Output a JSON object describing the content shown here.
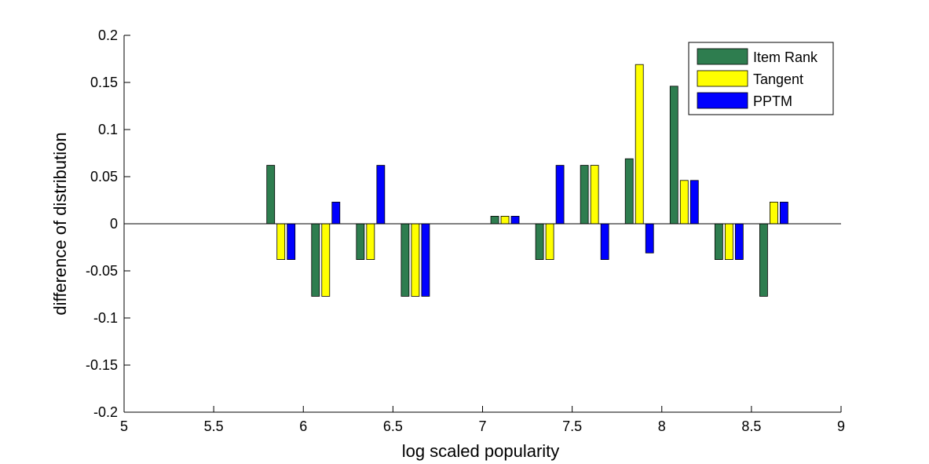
{
  "chart_data": {
    "type": "bar",
    "title": "",
    "xlabel": "log scaled popularity",
    "ylabel": "difference of distribution",
    "xlim": [
      5,
      9
    ],
    "ylim": [
      -0.2,
      0.2
    ],
    "x_ticks": [
      "5",
      "5.5",
      "6",
      "6.5",
      "7",
      "7.5",
      "8",
      "8.5",
      "9"
    ],
    "y_ticks": [
      "0.2",
      "0.15",
      "0.1",
      "0.05",
      "0",
      "-0.05",
      "-0.1",
      "-0.15",
      "-0.2"
    ],
    "x_tick_values": [
      5,
      5.5,
      6,
      6.5,
      7,
      7.5,
      8,
      8.5,
      9
    ],
    "y_tick_values": [
      0.2,
      0.15,
      0.1,
      0.05,
      0,
      -0.05,
      -0.1,
      -0.15,
      -0.2
    ],
    "grid": false,
    "legend_position": "top-right",
    "x": [
      5.875,
      6.125,
      6.375,
      6.625,
      7.125,
      7.375,
      7.625,
      7.875,
      8.125,
      8.375,
      8.625
    ],
    "series": [
      {
        "name": "Item Rank",
        "color": "#2e7d4f",
        "values": [
          0.062,
          -0.077,
          -0.038,
          -0.077,
          0.008,
          -0.038,
          0.062,
          0.069,
          0.146,
          -0.038,
          -0.077
        ]
      },
      {
        "name": "Tangent",
        "color": "#ffff00",
        "values": [
          -0.038,
          -0.077,
          -0.038,
          -0.077,
          0.008,
          -0.038,
          0.062,
          0.169,
          0.046,
          -0.038,
          0.023
        ]
      },
      {
        "name": "PPTM",
        "color": "#0000ff",
        "values": [
          -0.038,
          0.023,
          0.062,
          -0.077,
          0.008,
          0.062,
          -0.038,
          -0.031,
          0.046,
          -0.038,
          0.023
        ]
      }
    ]
  }
}
